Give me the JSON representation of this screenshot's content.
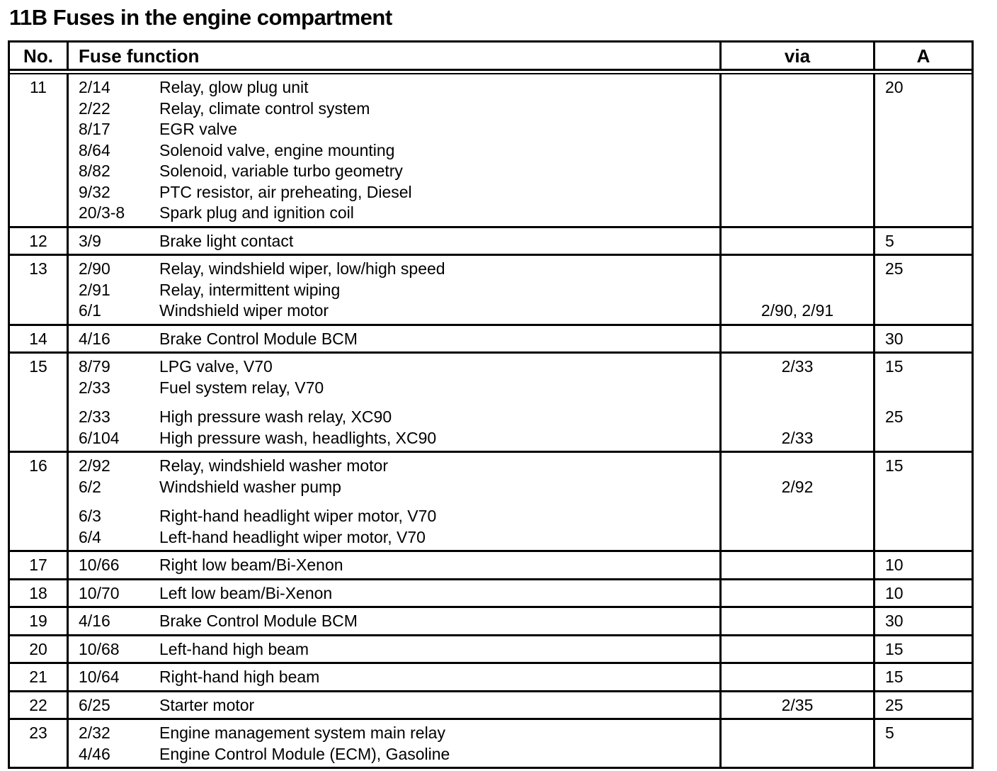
{
  "title": "11B Fuses in the engine compartment",
  "colors": {
    "ink": "#000000",
    "paper": "#ffffff"
  },
  "table": {
    "headers": {
      "no": "No.",
      "function": "Fuse function",
      "via": "via",
      "amp": "A"
    },
    "rows": [
      {
        "no": "11",
        "lines": [
          {
            "code": "2/14",
            "label": "Relay, glow plug unit",
            "via": "",
            "amp": "20"
          },
          {
            "code": "2/22",
            "label": "Relay, climate control system",
            "via": "",
            "amp": ""
          },
          {
            "code": "8/17",
            "label": "EGR valve",
            "via": "",
            "amp": ""
          },
          {
            "code": "8/64",
            "label": "Solenoid valve, engine mounting",
            "via": "",
            "amp": ""
          },
          {
            "code": "8/82",
            "label": "Solenoid, variable turbo geometry",
            "via": "",
            "amp": ""
          },
          {
            "code": "9/32",
            "label": "PTC resistor, air preheating, Diesel",
            "via": "",
            "amp": ""
          },
          {
            "code": "20/3-8",
            "label": "Spark plug and ignition coil",
            "via": "",
            "amp": ""
          }
        ]
      },
      {
        "no": "12",
        "lines": [
          {
            "code": "3/9",
            "label": "Brake light contact",
            "via": "",
            "amp": "5"
          }
        ]
      },
      {
        "no": "13",
        "lines": [
          {
            "code": "2/90",
            "label": "Relay, windshield wiper, low/high speed",
            "via": "",
            "amp": "25"
          },
          {
            "code": "2/91",
            "label": "Relay, intermittent wiping",
            "via": "",
            "amp": ""
          },
          {
            "code": "6/1",
            "label": "Windshield wiper motor",
            "via": "2/90, 2/91",
            "amp": ""
          }
        ]
      },
      {
        "no": "14",
        "lines": [
          {
            "code": "4/16",
            "label": "Brake Control Module BCM",
            "via": "",
            "amp": "30"
          }
        ]
      },
      {
        "no": "15",
        "lines": [
          {
            "code": "8/79",
            "label": "LPG valve, V70",
            "via": "2/33",
            "amp": "15"
          },
          {
            "code": "2/33",
            "label": "Fuel system relay, V70",
            "via": "",
            "amp": ""
          },
          {
            "code": "2/33",
            "label": "High pressure wash relay, XC90",
            "via": "",
            "amp": "25",
            "gap": true
          },
          {
            "code": "6/104",
            "label": "High pressure wash, headlights, XC90",
            "via": "2/33",
            "amp": ""
          }
        ]
      },
      {
        "no": "16",
        "lines": [
          {
            "code": "2/92",
            "label": "Relay, windshield washer motor",
            "via": "",
            "amp": "15"
          },
          {
            "code": "6/2",
            "label": "Windshield washer pump",
            "via": "2/92",
            "amp": ""
          },
          {
            "code": "6/3",
            "label": "Right-hand headlight wiper motor, V70",
            "via": "",
            "amp": "",
            "gap": true
          },
          {
            "code": "6/4",
            "label": "Left-hand headlight wiper motor, V70",
            "via": "",
            "amp": ""
          }
        ]
      },
      {
        "no": "17",
        "lines": [
          {
            "code": "10/66",
            "label": "Right low beam/Bi-Xenon",
            "via": "",
            "amp": "10"
          }
        ]
      },
      {
        "no": "18",
        "lines": [
          {
            "code": "10/70",
            "label": "Left low beam/Bi-Xenon",
            "via": "",
            "amp": "10"
          }
        ]
      },
      {
        "no": "19",
        "lines": [
          {
            "code": "4/16",
            "label": "Brake Control Module BCM",
            "via": "",
            "amp": "30"
          }
        ]
      },
      {
        "no": "20",
        "lines": [
          {
            "code": "10/68",
            "label": "Left-hand high beam",
            "via": "",
            "amp": "15"
          }
        ]
      },
      {
        "no": "21",
        "lines": [
          {
            "code": "10/64",
            "label": "Right-hand high beam",
            "via": "",
            "amp": "15"
          }
        ]
      },
      {
        "no": "22",
        "lines": [
          {
            "code": "6/25",
            "label": "Starter motor",
            "via": "2/35",
            "amp": "25"
          }
        ]
      },
      {
        "no": "23",
        "lines": [
          {
            "code": "2/32",
            "label": "Engine management system main relay",
            "via": "",
            "amp": "5"
          },
          {
            "code": "4/46",
            "label": "Engine Control Module (ECM), Gasoline",
            "via": "",
            "amp": ""
          }
        ]
      }
    ]
  }
}
